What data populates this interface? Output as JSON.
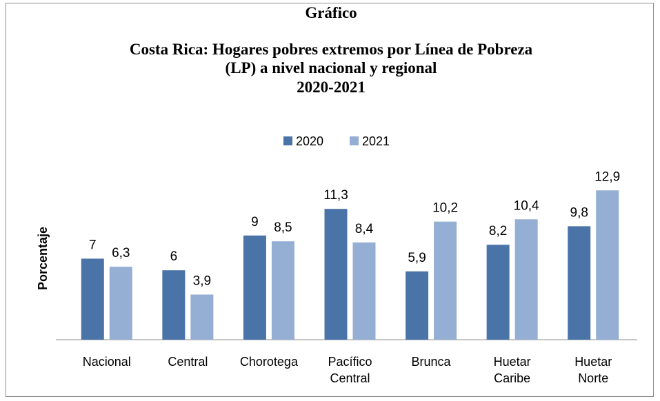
{
  "chart_data": {
    "type": "bar",
    "title": [
      "Gráfico",
      "Costa Rica: Hogares pobres extremos por Línea de Pobreza",
      "(LP) a nivel nacional y regional",
      "2020-2021"
    ],
    "ylabel": "Porcentaje",
    "categories": [
      "Nacional",
      "Central",
      "Chorotega",
      "Pacífico Central",
      "Brunca",
      "Huetar Caribe",
      "Huetar Norte"
    ],
    "series": [
      {
        "name": "2020",
        "color": "#4a74a8",
        "values": [
          7,
          6,
          9,
          11.3,
          5.9,
          8.2,
          9.8
        ],
        "value_labels": [
          "7",
          "6",
          "9",
          "11,3",
          "5,9",
          "8,2",
          "9,8"
        ]
      },
      {
        "name": "2021",
        "color": "#95aed3",
        "values": [
          6.3,
          3.9,
          8.5,
          8.4,
          10.2,
          10.4,
          12.9
        ],
        "value_labels": [
          "6,3",
          "3,9",
          "8,5",
          "8,4",
          "10,2",
          "10,4",
          "12,9"
        ]
      }
    ],
    "ylim": [
      0,
      14
    ],
    "legend": "top",
    "grid": false
  }
}
